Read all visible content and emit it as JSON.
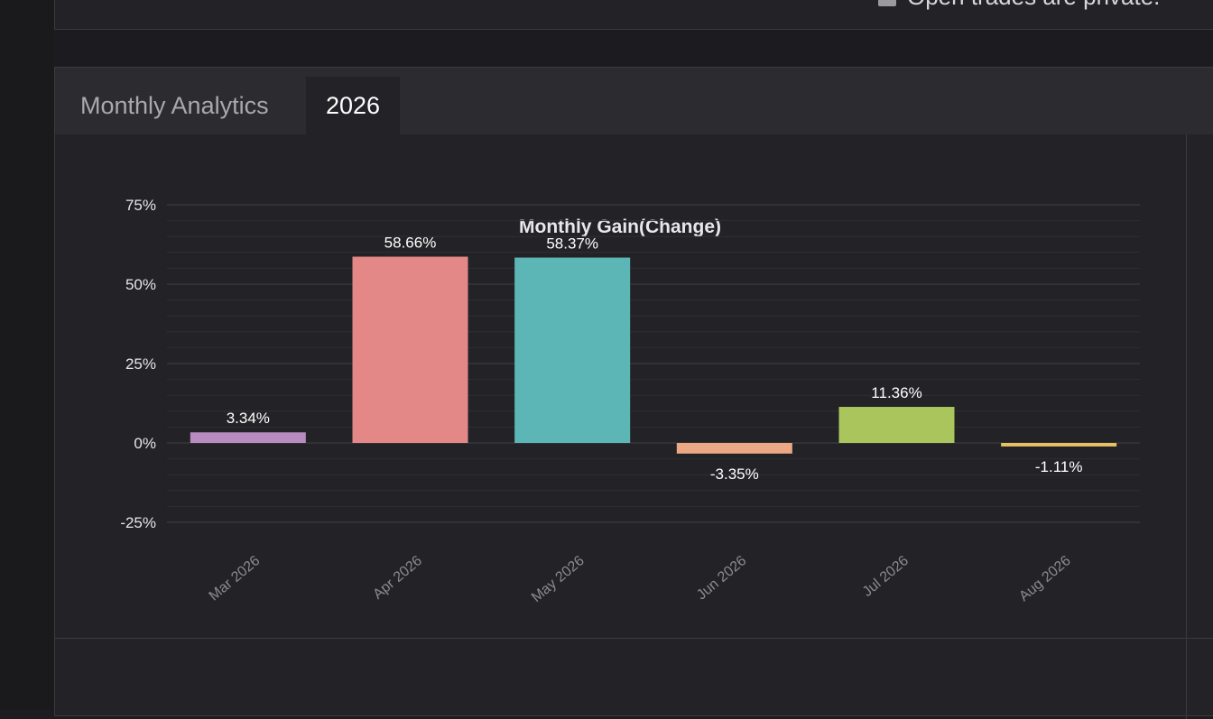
{
  "top_panel": {
    "private_label": "Open trades are private."
  },
  "tabs": [
    {
      "label": "Monthly Analytics"
    },
    {
      "label": "2026"
    }
  ],
  "colors": {
    "bar_colors": [
      "#b78bc0",
      "#e38787",
      "#5cb6b6",
      "#eca884",
      "#a9c55c",
      "#e8c25f"
    ],
    "grid": "#3a3a3f",
    "text": "#ffffff",
    "tick": "#8a8a90"
  },
  "chart_data": {
    "type": "bar",
    "title": "Monthly Gain(Change)",
    "categories": [
      "Mar 2026",
      "Apr 2026",
      "May 2026",
      "Jun 2026",
      "Jul 2026",
      "Aug 2026"
    ],
    "values": [
      3.34,
      58.66,
      58.37,
      -3.35,
      11.36,
      -1.11
    ],
    "value_labels": [
      "3.34%",
      "58.66%",
      "58.37%",
      "-3.35%",
      "11.36%",
      "-1.11%"
    ],
    "yticks": [
      75,
      50,
      25,
      0,
      -25
    ],
    "ytick_labels": [
      "75%",
      "50%",
      "25%",
      "0%",
      "-25%"
    ],
    "ylim": [
      -25,
      75
    ],
    "xlabel": "",
    "ylabel": "",
    "grid": true,
    "legend": "none"
  }
}
